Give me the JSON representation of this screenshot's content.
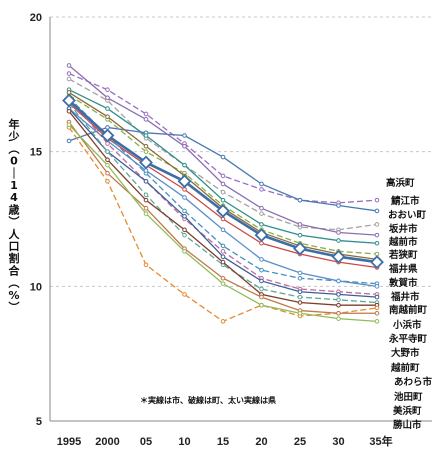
{
  "chart_data": {
    "type": "line",
    "title": "",
    "xlabel": "",
    "ylabel": "年少（0～14歳）人口割合（%）",
    "x_labels": [
      "1995",
      "2000",
      "05",
      "10",
      "15",
      "20",
      "25",
      "30",
      "35年"
    ],
    "x_years": [
      1995,
      2000,
      2005,
      2010,
      2015,
      2020,
      2025,
      2030,
      2035
    ],
    "ylim": [
      5,
      20
    ],
    "yticks": [
      5,
      10,
      15,
      20
    ],
    "grid": "dashed-horizontal",
    "note": "＊実線は市、破線は町、太い実線は県",
    "series": [
      {
        "name": "高浜町",
        "dash": true,
        "color": "#9a6cc2",
        "values": [
          17.9,
          17.3,
          16.4,
          15.3,
          14.1,
          13.6,
          13.2,
          13.1,
          13.2
        ]
      },
      {
        "name": "鯖江市",
        "dash": false,
        "color": "#4a78b5",
        "values": [
          15.4,
          15.9,
          15.7,
          15.6,
          14.8,
          13.8,
          13.2,
          13.0,
          12.8
        ]
      },
      {
        "name": "おおい町",
        "dash": true,
        "color": "#a2a2a2",
        "values": [
          17.7,
          16.9,
          15.5,
          14.5,
          13.5,
          12.7,
          12.2,
          12.1,
          12.3
        ]
      },
      {
        "name": "坂井市",
        "dash": false,
        "color": "#2f8f8b",
        "values": [
          17.3,
          16.6,
          15.6,
          14.5,
          13.2,
          12.3,
          11.9,
          11.7,
          11.6
        ]
      },
      {
        "name": "越前市",
        "dash": false,
        "color": "#8a6fb0",
        "values": [
          18.2,
          17.0,
          16.2,
          15.2,
          13.8,
          12.9,
          12.3,
          12.0,
          11.9
        ]
      },
      {
        "name": "若狭町",
        "dash": true,
        "color": "#88b048",
        "values": [
          17.1,
          16.2,
          15.0,
          14.2,
          13.0,
          12.1,
          11.6,
          11.3,
          11.2
        ]
      },
      {
        "name": "福井県",
        "dash": false,
        "bold": true,
        "color": "#3d6ea5",
        "values": [
          16.9,
          15.6,
          14.6,
          13.9,
          12.8,
          11.9,
          11.4,
          11.1,
          10.9
        ]
      },
      {
        "name": "敦賀市",
        "dash": false,
        "color": "#8a6a3a",
        "values": [
          17.2,
          16.3,
          15.2,
          14.1,
          12.9,
          12.0,
          11.5,
          11.2,
          11.0
        ]
      },
      {
        "name": "福井市",
        "dash": false,
        "color": "#c84a46",
        "values": [
          16.8,
          15.5,
          14.5,
          13.6,
          12.5,
          11.6,
          11.2,
          10.9,
          10.7
        ]
      },
      {
        "name": "南越前町",
        "dash": true,
        "color": "#4a90b8",
        "values": [
          17.0,
          15.6,
          14.2,
          12.8,
          11.5,
          10.6,
          10.3,
          10.2,
          10.1
        ]
      },
      {
        "name": "小浜市",
        "dash": false,
        "color": "#5b8ec9",
        "values": [
          16.6,
          15.4,
          14.3,
          13.3,
          12.1,
          11.0,
          10.5,
          10.2,
          10.0
        ]
      },
      {
        "name": "永平寺町",
        "dash": true,
        "color": "#c06a9a",
        "values": [
          17.0,
          15.3,
          13.9,
          12.5,
          11.3,
          10.3,
          9.9,
          9.8,
          9.7
        ]
      },
      {
        "name": "大野市",
        "dash": false,
        "color": "#3c5e96",
        "values": [
          16.6,
          15.0,
          13.9,
          12.6,
          11.1,
          10.2,
          9.8,
          9.7,
          9.6
        ]
      },
      {
        "name": "越前町",
        "dash": true,
        "color": "#5fa89a",
        "values": [
          16.8,
          15.0,
          13.4,
          11.9,
          10.8,
          9.9,
          9.6,
          9.5,
          9.4
        ]
      },
      {
        "name": "あわら市",
        "dash": false,
        "color": "#7e3c2c",
        "values": [
          16.5,
          14.7,
          13.2,
          12.1,
          10.9,
          9.7,
          9.4,
          9.3,
          9.3
        ]
      },
      {
        "name": "池田町",
        "dash": true,
        "color": "#e58a30",
        "values": [
          15.9,
          13.9,
          10.8,
          9.7,
          8.7,
          9.3,
          8.9,
          9.0,
          9.2
        ]
      },
      {
        "name": "美浜町",
        "dash": false,
        "color": "#c0784a",
        "values": [
          16.1,
          14.2,
          12.9,
          11.4,
          10.3,
          9.6,
          9.1,
          9.0,
          9.0
        ]
      },
      {
        "name": "勝山市",
        "dash": false,
        "color": "#8fbc5a",
        "values": [
          16.0,
          14.5,
          12.7,
          11.3,
          10.1,
          9.3,
          9.0,
          8.8,
          8.7
        ]
      }
    ]
  }
}
